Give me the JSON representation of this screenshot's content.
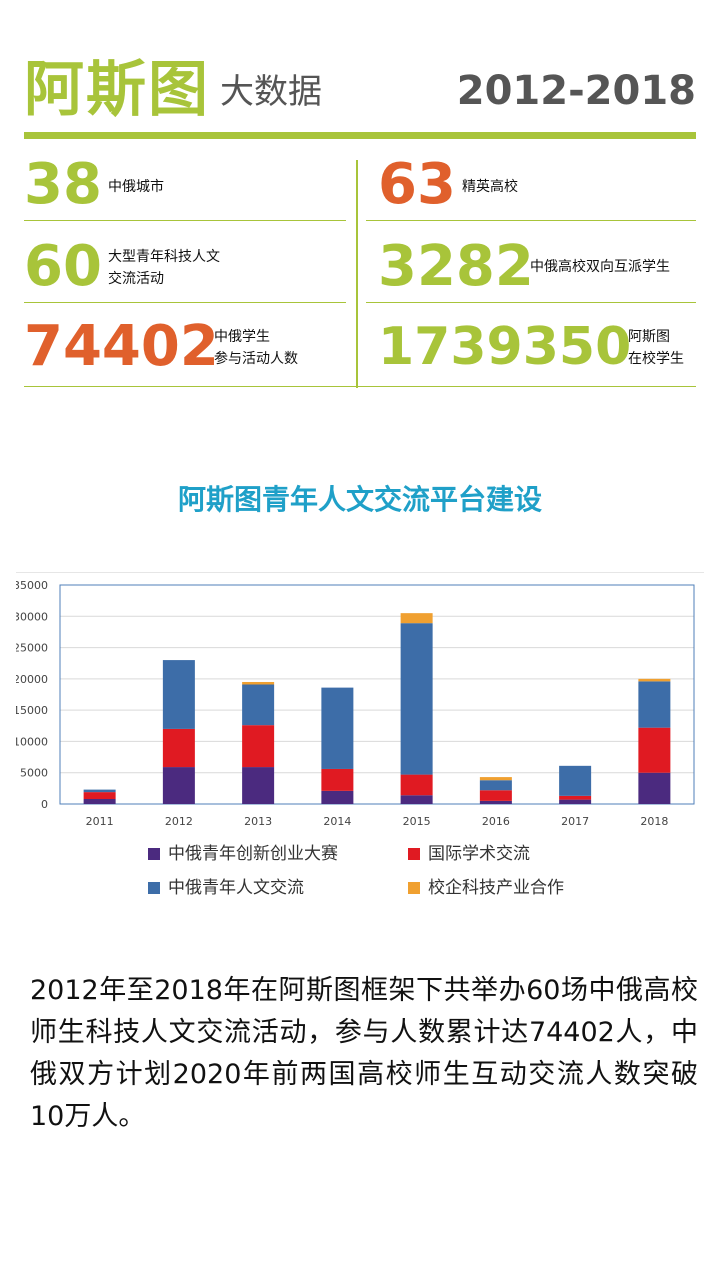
{
  "header": {
    "brand": "阿斯图",
    "subtitle": "大数据",
    "years": "2012-2018"
  },
  "stats": [
    {
      "value": "38",
      "label_line1": "中俄城市",
      "label_line2": "",
      "color": "#a8c43a"
    },
    {
      "value": "63",
      "label_line1": "精英高校",
      "label_line2": "",
      "color": "#e0602c"
    },
    {
      "value": "60",
      "label_line1": "大型青年科技人文",
      "label_line2": "交流活动",
      "color": "#a8c43a"
    },
    {
      "value": "3282",
      "label_line1": "中俄高校双向互派学生",
      "label_line2": "",
      "color": "#a8c43a"
    },
    {
      "value": "74402",
      "label_line1": "中俄学生",
      "label_line2": "参与活动人数",
      "color": "#e0602c"
    },
    {
      "value": "1739350",
      "label_line1": "阿斯图",
      "label_line2": "在校学生",
      "color": "#a8c43a"
    }
  ],
  "chart_title": "阿斯图青年人文交流平台建设",
  "chart_data": {
    "type": "bar",
    "stacked": true,
    "categories": [
      "2011",
      "2012",
      "2013",
      "2014",
      "2015",
      "2016",
      "2017",
      "2018"
    ],
    "series": [
      {
        "name": "中俄青年创新创业大赛",
        "color": "#4b2a7f",
        "values": [
          800,
          5900,
          5900,
          2100,
          1400,
          500,
          700,
          5000
        ]
      },
      {
        "name": "国际学术交流",
        "color": "#e01a22",
        "values": [
          1100,
          6100,
          6700,
          3500,
          3300,
          1700,
          600,
          7200
        ]
      },
      {
        "name": "中俄青年人文交流",
        "color": "#3d6da8",
        "values": [
          400,
          11000,
          6500,
          13000,
          24200,
          1600,
          4800,
          7400
        ]
      },
      {
        "name": "校企科技产业合作",
        "color": "#f0a030",
        "values": [
          0,
          0,
          400,
          0,
          1600,
          500,
          0,
          400
        ]
      }
    ],
    "y_ticks": [
      "0",
      "5000",
      "10000",
      "15000",
      "20000",
      "25000",
      "30000",
      "35000"
    ],
    "ylim": [
      0,
      35000
    ],
    "grid": true,
    "legend_position": "bottom"
  },
  "paragraph": "2012年至2018年在阿斯图框架下共举办60场中俄高校师生科技人文交流活动，参与人数累计达74402人，中俄双方计划2020年前两国高校师生互动交流人数突破10万人。"
}
